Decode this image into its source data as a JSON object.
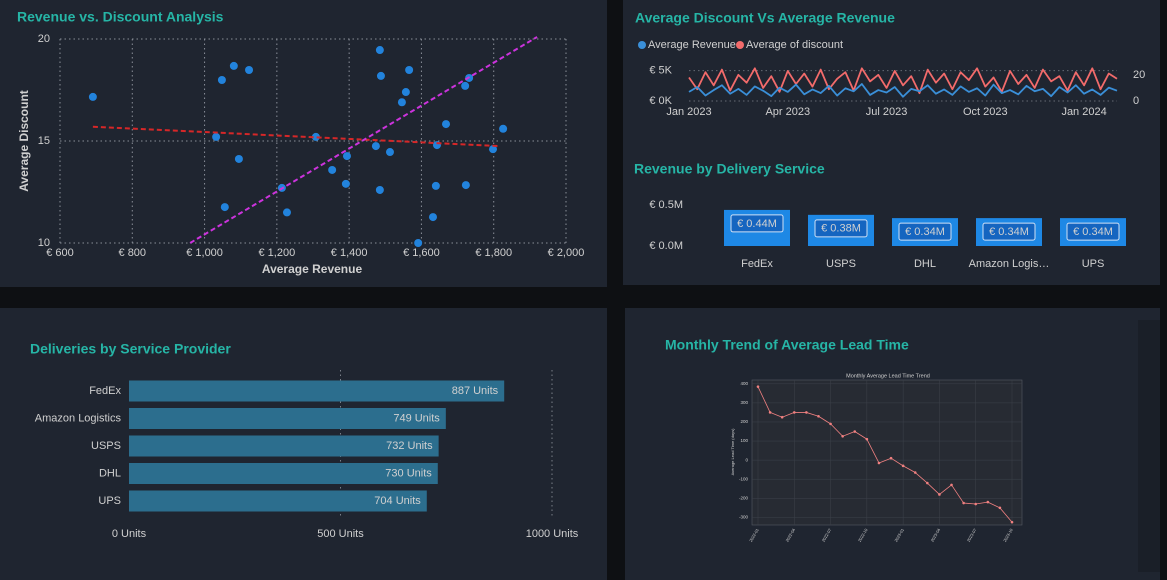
{
  "chart_data": [
    {
      "type": "scatter",
      "title": "Revenue vs. Discount Analysis",
      "x_label": "Average Revenue",
      "y_label": "Average Discount",
      "xlim": [
        600,
        2000
      ],
      "xticks": [
        {
          "value": 600,
          "label": "€ 600"
        },
        {
          "value": 800,
          "label": "€ 800"
        },
        {
          "value": 1000,
          "label": "€ 1,000"
        },
        {
          "value": 1200,
          "label": "€ 1,200"
        },
        {
          "value": 1400,
          "label": "€ 1,400"
        },
        {
          "value": 1600,
          "label": "€ 1,600"
        },
        {
          "value": 1800,
          "label": "€ 1,800"
        },
        {
          "value": 2000,
          "label": "€ 2,000"
        }
      ],
      "ylim": [
        10,
        20
      ],
      "yticks": [
        10,
        15,
        20
      ],
      "grid": true,
      "color": "#2283dc",
      "x": [
        691,
        1048,
        1081,
        1123,
        1032,
        1095,
        1056,
        1214,
        1228,
        1308,
        1353,
        1391,
        1394,
        1485,
        1488,
        1474,
        1485,
        1513,
        1546,
        1557,
        1566,
        1591,
        1632,
        1640,
        1643,
        1668,
        1721,
        1732,
        1723,
        1798,
        1826
      ],
      "values": [
        17.16,
        17.99,
        18.68,
        18.48,
        15.2,
        14.12,
        11.76,
        12.7,
        11.5,
        15.2,
        13.58,
        12.9,
        14.26,
        19.46,
        18.19,
        14.75,
        12.6,
        14.46,
        16.9,
        17.4,
        18.48,
        10.0,
        11.27,
        12.8,
        14.8,
        15.83,
        17.7,
        18.09,
        12.84,
        14.6,
        15.6
      ],
      "trend_lines": [
        {
          "color": "#d62728",
          "x": [
            691,
            1817
          ],
          "values": [
            15.7,
            14.75
          ]
        },
        {
          "color": "#cc33dd",
          "x": [
            960,
            1920
          ],
          "values": [
            10,
            20.1
          ]
        }
      ]
    },
    {
      "type": "line",
      "title": "Average Discount Vs Average Revenue",
      "legend": "top-left",
      "grid": true,
      "x": [
        "Jan 2023",
        null,
        null,
        null,
        null,
        null,
        null,
        null,
        null,
        null,
        null,
        null,
        "Apr 2023",
        null,
        null,
        null,
        null,
        null,
        null,
        null,
        null,
        null,
        null,
        null,
        "Jul 2023",
        null,
        null,
        null,
        null,
        null,
        null,
        null,
        null,
        null,
        null,
        null,
        "Oct 2023",
        null,
        null,
        null,
        null,
        null,
        null,
        null,
        null,
        null,
        null,
        null,
        "Jan 2024",
        null,
        null,
        null,
        null
      ],
      "series": [
        {
          "name": "Average Revenue",
          "color": "#3a8fd8",
          "values": [
            1500,
            2300,
            900,
            1800,
            2600,
            1200,
            2000,
            1000,
            2400,
            1700,
            800,
            2200,
            1500,
            2700,
            1100,
            1900,
            1300,
            2500,
            900,
            2100,
            1600,
            2800,
            1000,
            1800,
            1400,
            2300,
            700,
            2000,
            1600,
            2600,
            1200,
            1900,
            1000,
            2400,
            1500,
            2100,
            900,
            2700,
            1300,
            1800,
            1100,
            2500,
            1600,
            2000,
            800,
            2300,
            1400,
            2600,
            1200,
            1900,
            1000,
            2200,
            1700
          ]
        },
        {
          "name": "Average of discount",
          "color": "#f26b6b",
          "axis": "y2",
          "values": [
            18,
            9,
            22,
            12,
            24,
            8,
            20,
            14,
            25,
            10,
            19,
            7,
            23,
            13,
            21,
            11,
            24,
            9,
            17,
            22,
            8,
            25,
            15,
            20,
            10,
            23,
            12,
            19,
            6,
            24,
            14,
            21,
            9,
            22,
            16,
            25,
            11,
            18,
            7,
            23,
            13,
            20,
            10,
            24,
            15,
            19,
            8,
            22,
            12,
            25,
            9,
            21,
            17
          ]
        }
      ],
      "ylim": [
        0,
        5600
      ],
      "yticks": [
        {
          "value": 0,
          "label": "€ 0K"
        },
        {
          "value": 5000,
          "label": "€ 5K"
        }
      ],
      "y2lim": [
        0,
        26
      ],
      "y2ticks": [
        0,
        20
      ]
    },
    {
      "type": "bar",
      "title": "Revenue by Delivery Service",
      "categories": [
        "FedEx",
        "USPS",
        "DHL",
        "Amazon Logis…",
        "UPS"
      ],
      "values": [
        440000,
        380000,
        340000,
        340000,
        340000
      ],
      "value_labels": [
        "€ 0.44M",
        "€ 0.38M",
        "€ 0.34M",
        "€ 0.34M",
        "€ 0.34M"
      ],
      "color": "#1e88e5",
      "ylim": [
        0,
        500000
      ],
      "yticks": [
        {
          "value": 0,
          "label": "€ 0.0M"
        },
        {
          "value": 500000,
          "label": "€ 0.5M"
        }
      ]
    },
    {
      "type": "bar",
      "orientation": "horizontal",
      "title": "Deliveries by Service Provider",
      "categories": [
        "FedEx",
        "Amazon Logistics",
        "USPS",
        "DHL",
        "UPS"
      ],
      "values": [
        887,
        749,
        732,
        730,
        704
      ],
      "value_labels": [
        "887 Units",
        "749 Units",
        "732 Units",
        "730 Units",
        "704 Units"
      ],
      "color": "#2c6e8e",
      "xlim": [
        0,
        1000
      ],
      "xticks": [
        {
          "value": 0,
          "label": "0 Units"
        },
        {
          "value": 500,
          "label": "500 Units"
        },
        {
          "value": 1000,
          "label": "1000 Units"
        }
      ],
      "grid": true
    },
    {
      "type": "line",
      "title": "Monthly Trend of Average Lead Time",
      "subtitle": "Monthly Average Lead Time Trend",
      "y_label": "Average Lead Time (days)",
      "grid": true,
      "x": [
        "2022-01",
        null,
        null,
        "2022-04",
        null,
        null,
        "2022-07",
        null,
        null,
        "2022-10",
        null,
        null,
        "2023-01",
        null,
        null,
        "2023-04",
        null,
        null,
        "2023-07",
        null,
        null,
        "2023-10"
      ],
      "series": [
        {
          "color": "#f08080",
          "values": [
            385,
            250,
            225,
            250,
            250,
            230,
            190,
            125,
            150,
            110,
            -15,
            10,
            -30,
            -65,
            -120,
            -180,
            -130,
            -225,
            -230,
            -220,
            -250,
            -325
          ]
        }
      ],
      "ylim": [
        -340,
        420
      ],
      "yticks": [
        -300,
        -200,
        -100,
        0,
        100,
        200,
        300,
        400
      ]
    }
  ]
}
